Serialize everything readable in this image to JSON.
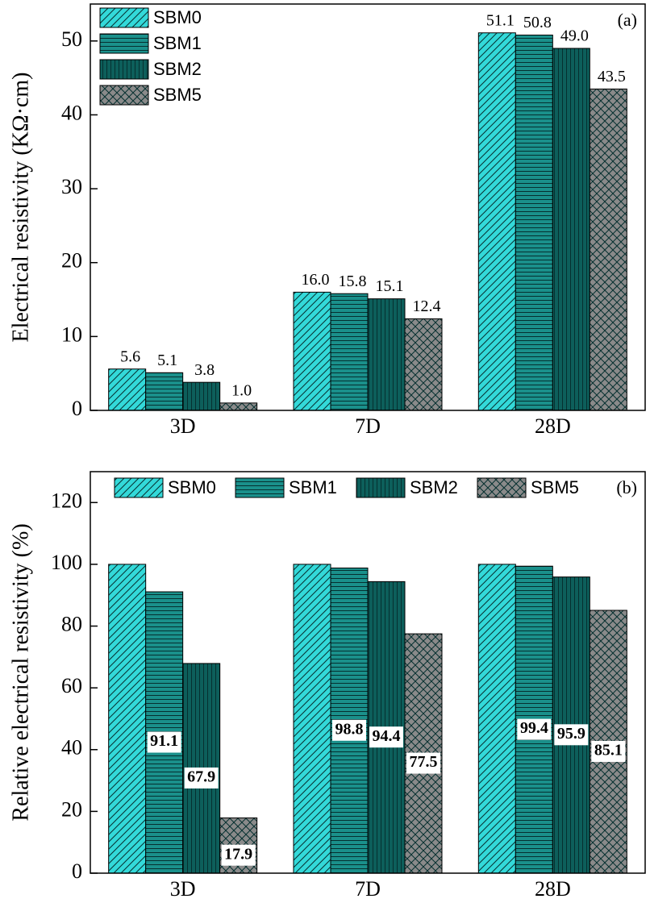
{
  "chart_data": [
    {
      "type": "bar",
      "y_label": "Electrical resistivity (KΩ·cm)",
      "annotation": "(a)",
      "categories": [
        "3D",
        "7D",
        "28D"
      ],
      "ylim": [
        0,
        55
      ],
      "yticks": [
        0,
        10,
        20,
        30,
        40,
        50
      ],
      "legend": "upper-left",
      "label_position": "above",
      "series": [
        {
          "name": "SBM0",
          "color": "#33d9d9",
          "hatch": "diagonal",
          "values": [
            5.6,
            16.0,
            51.1
          ],
          "value_labels": [
            "5.6",
            "16.0",
            "51.1"
          ]
        },
        {
          "name": "SBM1",
          "color": "#1a908b",
          "hatch": "horizontal",
          "values": [
            5.1,
            15.8,
            50.8
          ],
          "value_labels": [
            "5.1",
            "15.8",
            "50.8"
          ]
        },
        {
          "name": "SBM2",
          "color": "#0d5f5b",
          "hatch": "vertical",
          "values": [
            3.8,
            15.1,
            49.0
          ],
          "value_labels": [
            "3.8",
            "15.1",
            "49.0"
          ]
        },
        {
          "name": "SBM5",
          "color": "#8a8a8a",
          "hatch": "cross",
          "values": [
            1.0,
            12.4,
            43.5
          ],
          "value_labels": [
            "1.0",
            "12.4",
            "43.5"
          ]
        }
      ]
    },
    {
      "type": "bar",
      "y_label": "Relative electrical resistivity (%)",
      "annotation": "(b)",
      "categories": [
        "3D",
        "7D",
        "28D"
      ],
      "ylim": [
        0,
        130
      ],
      "yticks": [
        0,
        20,
        40,
        60,
        80,
        100,
        120
      ],
      "legend": "upper-row",
      "label_position": "inside",
      "series": [
        {
          "name": "SBM0",
          "color": "#33d9d9",
          "hatch": "diagonal",
          "values": [
            100,
            100,
            100
          ]
        },
        {
          "name": "SBM1",
          "color": "#1a908b",
          "hatch": "horizontal",
          "values": [
            91.1,
            98.8,
            99.4
          ],
          "show_labels": true
        },
        {
          "name": "SBM2",
          "color": "#0d5f5b",
          "hatch": "vertical",
          "values": [
            67.9,
            94.4,
            95.9
          ],
          "show_labels": true
        },
        {
          "name": "SBM5",
          "color": "#8a8a8a",
          "hatch": "cross",
          "values": [
            17.9,
            77.5,
            85.1
          ],
          "show_labels": true
        }
      ]
    }
  ]
}
